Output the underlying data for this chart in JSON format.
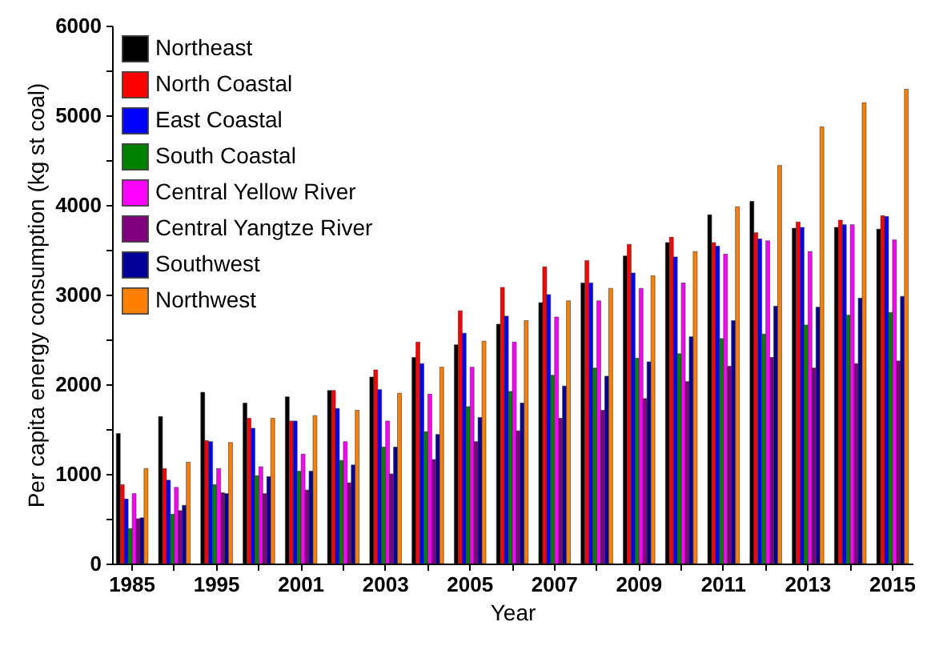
{
  "chart_data": {
    "type": "bar",
    "xlabel": "Year",
    "ylabel": "Per capita energy consumption (kg st coal)",
    "categories": [
      "1985",
      null,
      "1995",
      null,
      "2001",
      null,
      "2003",
      null,
      "2005",
      null,
      "2007",
      null,
      "2009",
      null,
      "2011",
      null,
      "2013",
      null,
      "2015"
    ],
    "series": [
      {
        "name": "Northeast",
        "color": "#000000",
        "values": [
          1450,
          1640,
          1910,
          1790,
          1860,
          1930,
          2080,
          2300,
          2440,
          2670,
          2910,
          3130,
          3430,
          3580,
          3890,
          4040,
          3740,
          3750,
          3730
        ]
      },
      {
        "name": "North Coastal",
        "color": "#ff0000",
        "values": [
          880,
          1060,
          1370,
          1620,
          1590,
          1930,
          2160,
          2470,
          2820,
          3080,
          3310,
          3380,
          3560,
          3640,
          3580,
          3690,
          3810,
          3830,
          3880
        ]
      },
      {
        "name": "East Coastal",
        "color": "#0000ff",
        "values": [
          720,
          930,
          1360,
          1510,
          1590,
          1730,
          1940,
          2230,
          2570,
          2760,
          3000,
          3130,
          3240,
          3420,
          3540,
          3620,
          3750,
          3780,
          3870
        ]
      },
      {
        "name": "South Coastal",
        "color": "#008000",
        "values": [
          390,
          550,
          880,
          980,
          1030,
          1150,
          1300,
          1470,
          1750,
          1920,
          2100,
          2180,
          2290,
          2340,
          2510,
          2560,
          2660,
          2770,
          2800
        ]
      },
      {
        "name": "Central Yellow River",
        "color": "#ff00ff",
        "values": [
          780,
          850,
          1060,
          1080,
          1220,
          1360,
          1590,
          1890,
          2190,
          2470,
          2750,
          2930,
          3070,
          3130,
          3450,
          3600,
          3480,
          3780,
          3610
        ]
      },
      {
        "name": "Central Yangtze River",
        "color": "#800080",
        "values": [
          500,
          590,
          790,
          780,
          820,
          900,
          1000,
          1160,
          1360,
          1480,
          1620,
          1710,
          1840,
          2030,
          2200,
          2300,
          2180,
          2230,
          2260
        ]
      },
      {
        "name": "Southwest",
        "color": "#000099",
        "values": [
          510,
          650,
          780,
          970,
          1030,
          1100,
          1300,
          1440,
          1630,
          1790,
          1980,
          2090,
          2250,
          2530,
          2710,
          2870,
          2860,
          2960,
          2980
        ]
      },
      {
        "name": "Northwest",
        "color": "#ff8000",
        "values": [
          1060,
          1130,
          1350,
          1620,
          1650,
          1710,
          1900,
          2190,
          2480,
          2710,
          2930,
          3070,
          3210,
          3480,
          3980,
          4440,
          4870,
          5140,
          5290
        ]
      }
    ],
    "ylim": [
      0,
      6000
    ],
    "yticks": [
      0,
      {
        "value": 500,
        "label": null
      },
      1000,
      {
        "value": 1500,
        "label": null
      },
      2000,
      {
        "value": 2500,
        "label": null
      },
      3000,
      {
        "value": 3500,
        "label": null
      },
      4000,
      {
        "value": 4500,
        "label": null
      },
      5000,
      {
        "value": 5500,
        "label": null
      },
      6000
    ],
    "grid": false,
    "legend": "top left"
  }
}
